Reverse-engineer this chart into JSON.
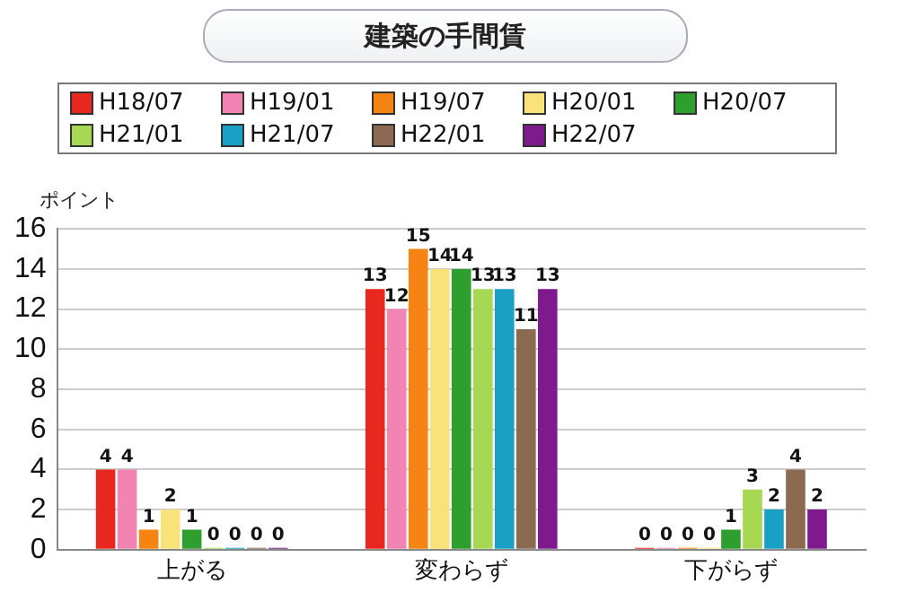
{
  "chart_data": {
    "type": "bar",
    "title": "建築の手間賃",
    "ylabel": "ポイント",
    "categories": [
      "上がる",
      "変わらず",
      "下がらず"
    ],
    "series": [
      {
        "name": "H18/07",
        "color": "#e8281e",
        "values": [
          4,
          13,
          0
        ]
      },
      {
        "name": "H19/01",
        "color": "#f284b4",
        "values": [
          4,
          12,
          0
        ]
      },
      {
        "name": "H19/07",
        "color": "#f58412",
        "values": [
          1,
          15,
          0
        ]
      },
      {
        "name": "H20/01",
        "color": "#fae27a",
        "values": [
          2,
          14,
          0
        ]
      },
      {
        "name": "H20/07",
        "color": "#2e9e2e",
        "values": [
          1,
          14,
          1
        ]
      },
      {
        "name": "H21/01",
        "color": "#a6d854",
        "values": [
          0,
          13,
          3
        ]
      },
      {
        "name": "H21/07",
        "color": "#1aa0c4",
        "values": [
          0,
          13,
          2
        ]
      },
      {
        "name": "H22/01",
        "color": "#8c6a52",
        "values": [
          0,
          11,
          4
        ]
      },
      {
        "name": "H22/07",
        "color": "#7e1a8e",
        "values": [
          0,
          13,
          2
        ]
      }
    ],
    "ylim": [
      0,
      16
    ],
    "yticks": [
      0,
      2,
      4,
      6,
      8,
      10,
      12,
      14,
      16
    ],
    "grid": "y",
    "legend": "top",
    "data_labels": true
  }
}
